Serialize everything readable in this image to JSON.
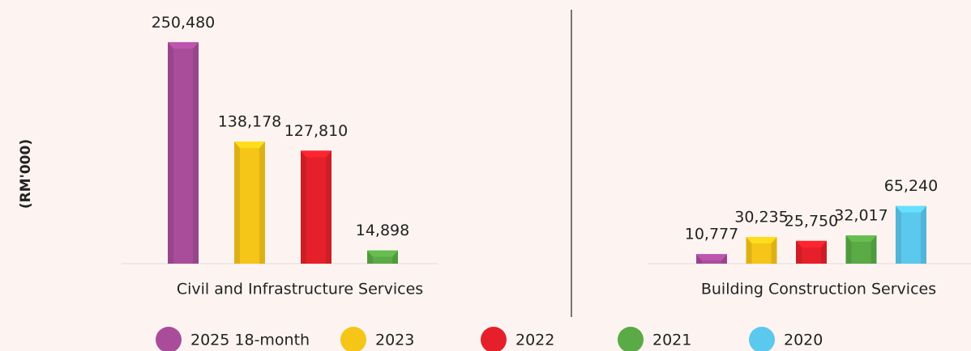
{
  "chart_data": {
    "type": "bar",
    "y_label": "(RM'000)",
    "categories": [
      "Civil and Infrastructure Services",
      "Building Construction Services"
    ],
    "series": [
      {
        "name": "2025 18-month",
        "color": "#a94d9a",
        "values": [
          250480,
          10777
        ],
        "value_labels": [
          "250,480",
          "10,777"
        ]
      },
      {
        "name": "2023",
        "color": "#f5c518",
        "values": [
          138178,
          30235
        ],
        "value_labels": [
          "138,178",
          "30,235"
        ]
      },
      {
        "name": "2022",
        "color": "#e5202a",
        "values": [
          127810,
          25750
        ],
        "value_labels": [
          "127,810",
          "25,750"
        ]
      },
      {
        "name": "2021",
        "color": "#5aaa46",
        "values": [
          14898,
          32017
        ],
        "value_labels": [
          "14,898",
          "32,017"
        ]
      },
      {
        "name": "2020",
        "color": "#5bc8ee",
        "values": [
          null,
          65240
        ],
        "value_labels": [
          null,
          "65,240"
        ]
      }
    ],
    "ylim": [
      0,
      280000
    ],
    "legend": "bottom"
  }
}
